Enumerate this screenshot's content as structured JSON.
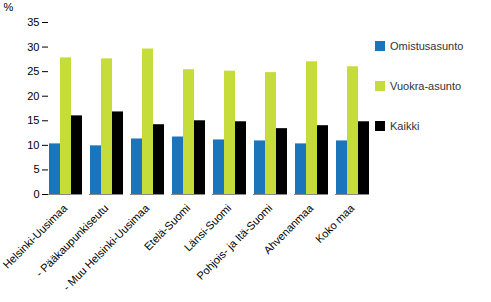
{
  "chart_data": {
    "type": "bar",
    "y_label": "%",
    "categories": [
      "Helsinki-Uusimaa",
      "- Pääkaupunkiseutu",
      "- Muu Helsinki-Uusimaa",
      "Etelä-Suomi",
      "Länsi-Suomi",
      "Pohjois- ja Itä-Suomi",
      "Ahvenanmaa",
      "Koko maa"
    ],
    "series": [
      {
        "name": "Omistusasunto",
        "color": "#1a75bb",
        "values": [
          10.3,
          9.9,
          11.3,
          11.7,
          11.1,
          10.9,
          10.3,
          10.9
        ]
      },
      {
        "name": "Vuokra-asunto",
        "color": "#c6dc3a",
        "values": [
          27.8,
          27.6,
          29.6,
          25.4,
          25.1,
          24.8,
          27.0,
          26.0
        ]
      },
      {
        "name": "Kaikki",
        "color": "#000000",
        "values": [
          16.0,
          16.8,
          14.2,
          15.0,
          14.8,
          13.4,
          14.0,
          14.8
        ]
      }
    ],
    "ylim": [
      0,
      35
    ],
    "yticks": [
      0,
      5,
      10,
      15,
      20,
      25,
      30,
      35
    ],
    "grid": false,
    "legend": "right"
  }
}
